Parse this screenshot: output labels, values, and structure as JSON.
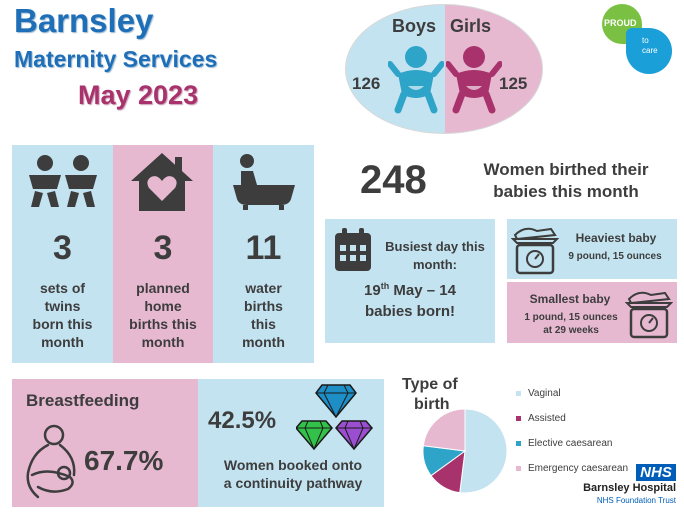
{
  "header": {
    "line1": "Barnsley",
    "line2": "Maternity Services",
    "line3": "May 2023"
  },
  "gender": {
    "boys_label": "Boys",
    "girls_label": "Girls",
    "boys_count": "126",
    "girls_count": "125",
    "boys_icon": "baby-boy-icon",
    "girls_icon": "baby-girl-icon"
  },
  "logo": {
    "line1": "PROUD",
    "line2": "to",
    "line3": "care"
  },
  "stats": {
    "twins": {
      "value": "3",
      "label": [
        "sets of",
        "twins",
        "born this",
        "month"
      ],
      "icon": "twins-icon"
    },
    "home": {
      "value": "3",
      "label": [
        "planned",
        "home",
        "births this",
        "month"
      ],
      "icon": "house-heart-icon"
    },
    "water": {
      "value": "11",
      "label": [
        "water",
        "births",
        "this",
        "month"
      ],
      "icon": "bath-icon"
    }
  },
  "women": {
    "count": "248",
    "text_line1": "Women birthed their",
    "text_line2": "babies this month"
  },
  "busiest": {
    "label_line1": "Busiest day this",
    "label_line2": "month:",
    "day": "19",
    "suffix": "th",
    "rest": " May – 14",
    "line2": "babies born!",
    "icon": "calendar-icon"
  },
  "heaviest": {
    "title": "Heaviest baby",
    "weight": "9 pound, 15 ounces",
    "icon": "baby-scale-icon"
  },
  "smallest": {
    "title": "Smallest baby",
    "line1": "1 pound, 15 ounces",
    "line2": "at 29 weeks",
    "icon": "baby-scale-icon"
  },
  "breastfeeding": {
    "title": "Breastfeeding",
    "value": "67.7%",
    "icon": "breastfeeding-icon"
  },
  "continuity": {
    "value": "42.5%",
    "line1": "Women booked onto",
    "line2": "a continuity pathway",
    "icon": "diamonds-icon"
  },
  "birth_type": {
    "title_line1": "Type of",
    "title_line2": "birth"
  },
  "chart_data": {
    "type": "pie",
    "title": "Type of birth",
    "categories": [
      "Vaginal",
      "Assisted",
      "Elective caesarean",
      "Emergency caesarean"
    ],
    "values": [
      52,
      13,
      12,
      23
    ],
    "colors": [
      "#c3e3f0",
      "#a8326b",
      "#2fa4c9",
      "#e6b9d1"
    ],
    "legend": "right"
  },
  "nhs": {
    "badge": "NHS",
    "name": "Barnsley Hospital",
    "trust": "NHS Foundation Trust"
  },
  "colors": {
    "light_blue": "#c3e3f0",
    "light_pink": "#e6b9d1",
    "title_blue": "#1f6fb8",
    "title_magenta": "#a8326b",
    "nhs_blue": "#005eb8"
  }
}
